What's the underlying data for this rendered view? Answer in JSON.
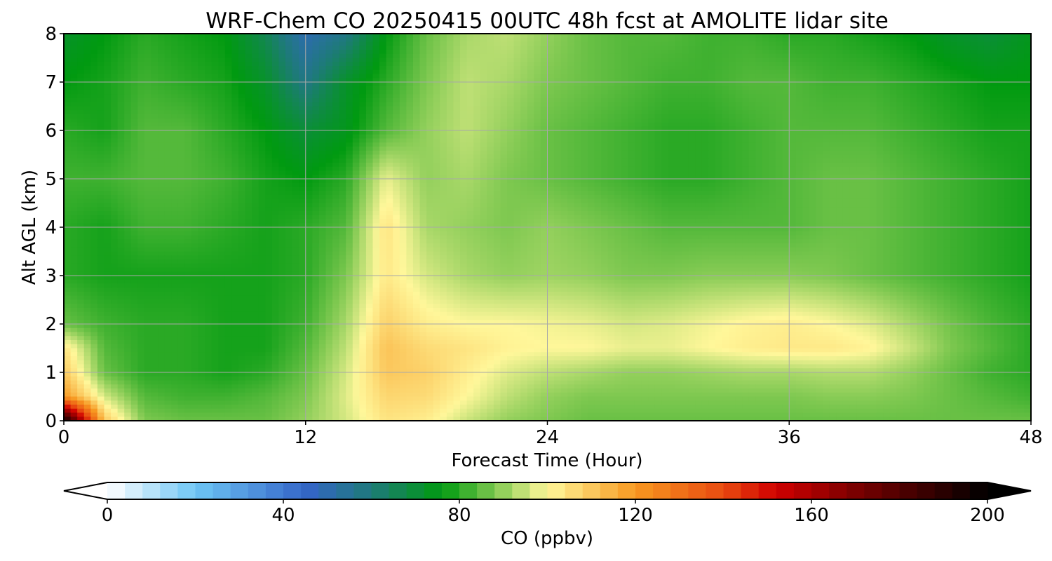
{
  "chart_data": {
    "type": "heatmap",
    "title": "WRF-Chem CO  20250415 00UTC 48h fcst at AMOLITE lidar site",
    "xlabel": "Forecast Time (Hour)",
    "ylabel": "Alt AGL (km)",
    "xlim": [
      0,
      48
    ],
    "ylim": [
      0,
      8
    ],
    "xticks": [
      0,
      12,
      24,
      36,
      48
    ],
    "yticks": [
      0,
      1,
      2,
      3,
      4,
      5,
      6,
      7,
      8
    ],
    "grid": true,
    "x_hours": [
      0,
      2,
      4,
      6,
      8,
      10,
      12,
      14,
      16,
      18,
      20,
      22,
      24,
      26,
      28,
      30,
      32,
      34,
      36,
      38,
      40,
      42,
      44,
      46,
      48
    ],
    "alt_km": [
      0,
      0.5,
      1,
      1.5,
      2,
      3,
      4,
      5,
      6,
      7,
      8
    ],
    "values_ppbv": [
      [
        200,
        110,
        88,
        86,
        86,
        86,
        90,
        96,
        104,
        102,
        95,
        90,
        88,
        86,
        86,
        86,
        86,
        86,
        86,
        86,
        86,
        86,
        86,
        86,
        86
      ],
      [
        120,
        96,
        84,
        82,
        82,
        84,
        88,
        97,
        107,
        106,
        100,
        94,
        90,
        88,
        88,
        88,
        88,
        88,
        88,
        89,
        89,
        88,
        86,
        84,
        82
      ],
      [
        110,
        86,
        80,
        80,
        78,
        80,
        86,
        96,
        110,
        108,
        102,
        97,
        94,
        92,
        90,
        90,
        91,
        92,
        92,
        93,
        93,
        90,
        86,
        82,
        80
      ],
      [
        104,
        84,
        80,
        80,
        78,
        78,
        84,
        94,
        111,
        106,
        104,
        101,
        100,
        100,
        98,
        98,
        100,
        102,
        103,
        103,
        101,
        95,
        88,
        84,
        80
      ],
      [
        86,
        82,
        80,
        80,
        78,
        78,
        82,
        92,
        108,
        102,
        100,
        100,
        99,
        98,
        96,
        97,
        99,
        101,
        102,
        100,
        97,
        92,
        87,
        83,
        80
      ],
      [
        80,
        78,
        78,
        78,
        78,
        78,
        80,
        88,
        103,
        96,
        92,
        90,
        91,
        90,
        88,
        88,
        89,
        89,
        89,
        88,
        86,
        84,
        82,
        80,
        78
      ],
      [
        80,
        78,
        82,
        82,
        80,
        78,
        80,
        84,
        104,
        92,
        90,
        88,
        90,
        88,
        86,
        84,
        84,
        84,
        84,
        86,
        86,
        84,
        82,
        80,
        78
      ],
      [
        82,
        82,
        84,
        84,
        82,
        78,
        76,
        80,
        98,
        90,
        92,
        88,
        86,
        84,
        82,
        80,
        80,
        82,
        84,
        86,
        86,
        84,
        82,
        80,
        78
      ],
      [
        80,
        78,
        84,
        84,
        80,
        76,
        70,
        74,
        84,
        90,
        94,
        90,
        86,
        84,
        82,
        80,
        80,
        82,
        84,
        84,
        84,
        82,
        80,
        78,
        78
      ],
      [
        76,
        78,
        82,
        80,
        78,
        72,
        58,
        72,
        80,
        88,
        94,
        92,
        88,
        86,
        84,
        82,
        82,
        84,
        84,
        82,
        82,
        80,
        78,
        76,
        76
      ],
      [
        72,
        76,
        80,
        78,
        76,
        66,
        50,
        58,
        76,
        86,
        92,
        94,
        90,
        86,
        84,
        84,
        82,
        82,
        80,
        80,
        78,
        76,
        72,
        70,
        74
      ]
    ],
    "colorbar": {
      "label": "CO  (ppbv)",
      "min": 0,
      "max": 200,
      "ticks": [
        0,
        40,
        80,
        120,
        160,
        200
      ],
      "extend": "both",
      "stops": [
        {
          "v": 0,
          "color": "#ffffff"
        },
        {
          "v": 20,
          "color": "#6ec6f5"
        },
        {
          "v": 45,
          "color": "#3465c8"
        },
        {
          "v": 60,
          "color": "#1e7a7a"
        },
        {
          "v": 76,
          "color": "#009a10"
        },
        {
          "v": 88,
          "color": "#7ec850"
        },
        {
          "v": 100,
          "color": "#fff79a"
        },
        {
          "v": 120,
          "color": "#f79820"
        },
        {
          "v": 140,
          "color": "#e84a10"
        },
        {
          "v": 152,
          "color": "#d00000"
        },
        {
          "v": 170,
          "color": "#7a0000"
        },
        {
          "v": 200,
          "color": "#000000"
        }
      ],
      "under_color": "#ffffff",
      "over_color": "#000000"
    }
  }
}
